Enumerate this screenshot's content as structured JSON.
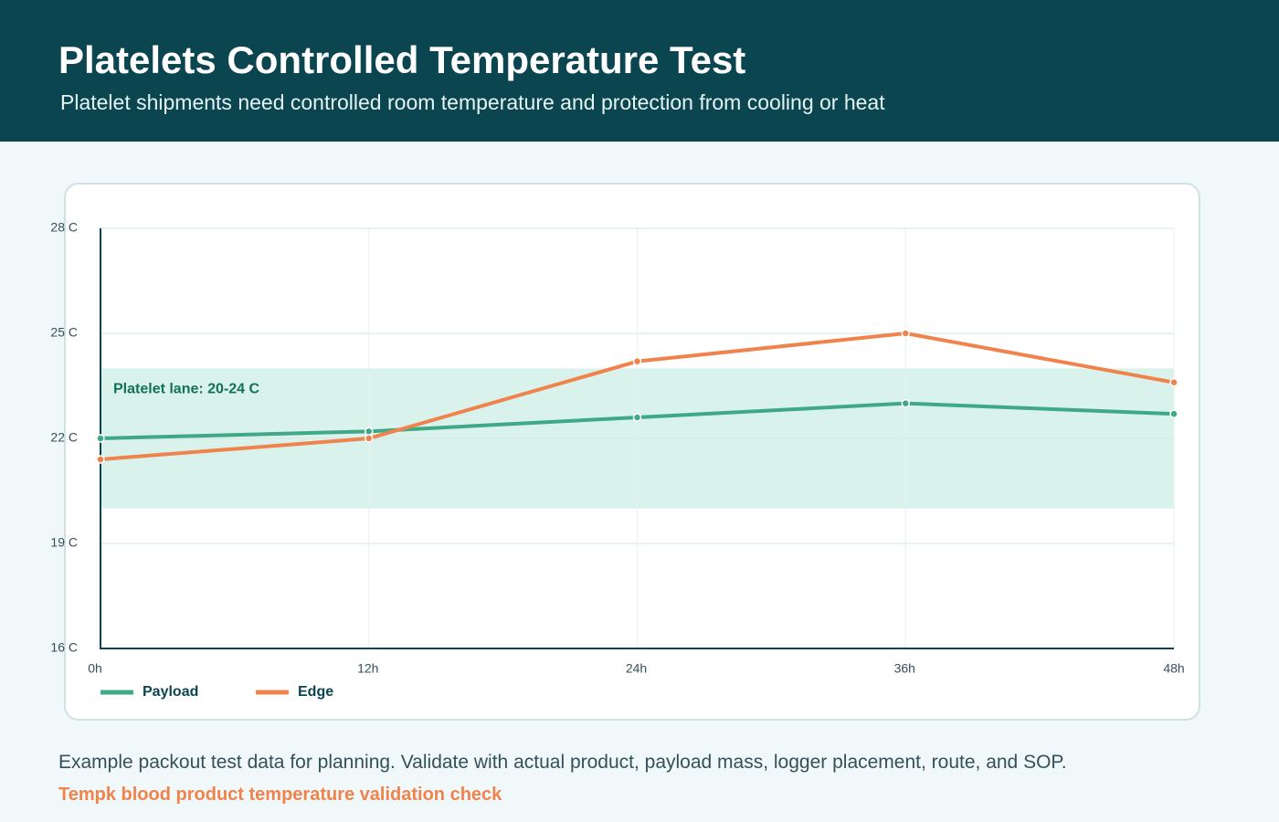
{
  "chart_data": {
    "type": "line",
    "title": "Platelets Controlled Temperature Test",
    "subtitle": "Platelet shipments need controlled room temperature and protection from cooling or heat",
    "categories": [
      "0h",
      "12h",
      "24h",
      "36h",
      "48h"
    ],
    "series": [
      {
        "name": "Payload",
        "color": "#3fa985",
        "values": [
          22,
          22.2,
          22.6,
          23,
          22.7
        ]
      },
      {
        "name": "Edge",
        "color": "#f0834c",
        "values": [
          21.4,
          22,
          24.2,
          25,
          23.6
        ]
      }
    ],
    "bands": [
      {
        "label": "Platelet lane: 20-24 C",
        "range": [
          20,
          24
        ],
        "color": "#d9f2ec"
      }
    ],
    "ylim": [
      16,
      28
    ],
    "yticks": [
      {
        "value": 16,
        "label": "16 C"
      },
      {
        "value": 19,
        "label": "19 C"
      },
      {
        "value": 22,
        "label": "22 C"
      },
      {
        "value": 25,
        "label": "25 C"
      },
      {
        "value": 28,
        "label": "28 C"
      }
    ],
    "grid": true,
    "legend": "bottom-left"
  },
  "footer": {
    "note": "Example packout test data for planning. Validate with actual product, payload mass, logger placement, route, and SOP.",
    "brand": "Tempk blood product temperature validation check"
  }
}
